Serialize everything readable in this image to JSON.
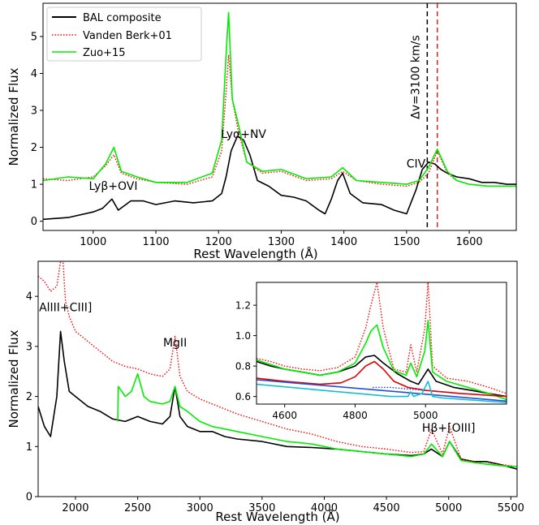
{
  "chart_data": [
    {
      "type": "line",
      "xlabel": "Rest Wavelength (Å)",
      "ylabel": "Normalized Flux",
      "xlim": [
        920,
        1675
      ],
      "ylim": [
        -0.25,
        5.9
      ],
      "xticks": [
        1000,
        1100,
        1200,
        1300,
        1400,
        1500,
        1600
      ],
      "yticks": [
        0,
        1,
        2,
        3,
        4,
        5
      ],
      "legend_position": "top-left",
      "series": [
        {
          "name": "BAL composite",
          "color": "#000000",
          "style": "solid",
          "x": [
            920,
            960,
            1000,
            1015,
            1030,
            1040,
            1060,
            1080,
            1100,
            1130,
            1160,
            1190,
            1205,
            1212,
            1220,
            1230,
            1240,
            1250,
            1262,
            1280,
            1300,
            1320,
            1340,
            1360,
            1370,
            1380,
            1390,
            1398,
            1410,
            1430,
            1460,
            1480,
            1500,
            1515,
            1525,
            1535,
            1545,
            1555,
            1565,
            1580,
            1600,
            1620,
            1640,
            1660,
            1675
          ],
          "y": [
            0.05,
            0.1,
            0.25,
            0.35,
            0.6,
            0.3,
            0.55,
            0.55,
            0.45,
            0.55,
            0.5,
            0.55,
            0.75,
            1.2,
            1.9,
            2.3,
            2.2,
            1.8,
            1.1,
            0.95,
            0.7,
            0.65,
            0.55,
            0.3,
            0.2,
            0.6,
            1.1,
            1.3,
            0.75,
            0.5,
            0.45,
            0.3,
            0.2,
            0.85,
            1.4,
            1.6,
            1.55,
            1.4,
            1.3,
            1.2,
            1.15,
            1.05,
            1.05,
            1.0,
            1.0
          ]
        },
        {
          "name": "Vanden Berk+01",
          "color": "#ff0000",
          "style": "dotted",
          "x": [
            920,
            960,
            1000,
            1020,
            1033,
            1045,
            1070,
            1100,
            1150,
            1190,
            1205,
            1212,
            1216,
            1222,
            1232,
            1245,
            1270,
            1300,
            1340,
            1380,
            1398,
            1420,
            1460,
            1500,
            1520,
            1535,
            1549,
            1565,
            1580,
            1600,
            1630,
            1660,
            1675
          ],
          "y": [
            1.15,
            1.1,
            1.2,
            1.5,
            1.8,
            1.3,
            1.15,
            1.05,
            1.0,
            1.2,
            1.9,
            3.5,
            4.5,
            3.3,
            2.4,
            1.6,
            1.3,
            1.35,
            1.1,
            1.15,
            1.35,
            1.1,
            1.0,
            0.95,
            1.05,
            1.3,
            1.9,
            1.3,
            1.1,
            1.0,
            0.95,
            0.95,
            0.95
          ]
        },
        {
          "name": "Zuo+15",
          "color": "#00ee00",
          "style": "solid",
          "x": [
            920,
            960,
            1000,
            1020,
            1033,
            1045,
            1070,
            1100,
            1150,
            1190,
            1205,
            1212,
            1216,
            1222,
            1232,
            1245,
            1270,
            1300,
            1340,
            1380,
            1398,
            1420,
            1460,
            1500,
            1520,
            1535,
            1549,
            1565,
            1580,
            1600,
            1630,
            1660,
            1675
          ],
          "y": [
            1.1,
            1.2,
            1.15,
            1.55,
            2.0,
            1.35,
            1.2,
            1.05,
            1.05,
            1.3,
            2.2,
            4.5,
            5.65,
            3.3,
            2.6,
            1.6,
            1.35,
            1.4,
            1.15,
            1.2,
            1.45,
            1.1,
            1.05,
            1.0,
            1.1,
            1.45,
            1.95,
            1.35,
            1.1,
            1.0,
            0.95,
            0.95,
            0.95
          ]
        }
      ],
      "vlines": [
        {
          "x": 1533,
          "color": "#000000",
          "style": "dashed"
        },
        {
          "x": 1549,
          "color": "#d62728",
          "style": "dashed"
        }
      ],
      "annotations": [
        {
          "text": "Lyβ+OVI",
          "x": 1032,
          "y": 0.85
        },
        {
          "text": "Lyα+NV",
          "x": 1240,
          "y": 2.25
        },
        {
          "text": "CIV",
          "x": 1515,
          "y": 1.45
        },
        {
          "text": "Δv=3100 km/s",
          "x": 1520,
          "y": 3.9,
          "rotation": -90
        }
      ]
    },
    {
      "type": "line",
      "xlabel": "Rest Wavelength (Å)",
      "ylabel": "Normalized Flux",
      "xlim": [
        1700,
        5550
      ],
      "ylim": [
        0,
        4.7
      ],
      "xticks": [
        2000,
        2500,
        3000,
        3500,
        4000,
        4500,
        5000,
        5500
      ],
      "yticks": [
        0,
        1,
        2,
        3,
        4
      ],
      "series": [
        {
          "name": "BAL composite",
          "color": "#000000",
          "style": "solid",
          "x": [
            1700,
            1750,
            1800,
            1850,
            1880,
            1910,
            1950,
            2000,
            2100,
            2200,
            2300,
            2400,
            2500,
            2600,
            2700,
            2760,
            2800,
            2840,
            2900,
            3000,
            3100,
            3200,
            3300,
            3500,
            3700,
            3900,
            4100,
            4300,
            4500,
            4700,
            4800,
            4860,
            4950,
            5007,
            5100,
            5200,
            5300,
            5400,
            5550
          ],
          "y": [
            1.8,
            1.4,
            1.2,
            2.0,
            3.3,
            2.7,
            2.1,
            2.0,
            1.8,
            1.7,
            1.55,
            1.5,
            1.6,
            1.5,
            1.45,
            1.6,
            2.2,
            1.6,
            1.4,
            1.3,
            1.3,
            1.2,
            1.15,
            1.1,
            1.0,
            0.98,
            0.95,
            0.9,
            0.85,
            0.82,
            0.85,
            0.95,
            0.8,
            1.1,
            0.75,
            0.7,
            0.7,
            0.65,
            0.55
          ]
        },
        {
          "name": "Vanden Berk+01",
          "color": "#ff0000",
          "style": "dotted",
          "x": [
            1700,
            1750,
            1800,
            1850,
            1880,
            1900,
            1920,
            1950,
            2000,
            2100,
            2200,
            2300,
            2400,
            2500,
            2600,
            2700,
            2760,
            2800,
            2840,
            2900,
            3000,
            3100,
            3200,
            3300,
            3500,
            3700,
            3900,
            4100,
            4300,
            4500,
            4700,
            4800,
            4862,
            4950,
            5007,
            5100,
            5200,
            5300,
            5400,
            5550
          ],
          "y": [
            4.4,
            4.3,
            4.1,
            4.2,
            4.7,
            4.7,
            3.9,
            3.6,
            3.3,
            3.1,
            2.9,
            2.7,
            2.6,
            2.55,
            2.45,
            2.4,
            2.55,
            3.2,
            2.4,
            2.1,
            1.95,
            1.85,
            1.75,
            1.65,
            1.5,
            1.35,
            1.25,
            1.1,
            1.0,
            0.95,
            0.88,
            0.9,
            1.35,
            0.85,
            1.4,
            0.75,
            0.7,
            0.65,
            0.65,
            0.6
          ]
        },
        {
          "name": "Zuo+15",
          "color": "#00ee00",
          "style": "solid",
          "x": [
            2340,
            2345,
            2400,
            2450,
            2500,
            2550,
            2600,
            2700,
            2760,
            2800,
            2840,
            2900,
            3000,
            3100,
            3200,
            3300,
            3500,
            3700,
            3900,
            4100,
            4300,
            4500,
            4700,
            4800,
            4862,
            4950,
            5007,
            5100,
            5200,
            5300,
            5400,
            5550
          ],
          "y": [
            1.5,
            2.2,
            2.0,
            2.1,
            2.45,
            2.0,
            1.9,
            1.85,
            1.9,
            2.2,
            1.8,
            1.7,
            1.5,
            1.4,
            1.35,
            1.3,
            1.2,
            1.1,
            1.05,
            0.95,
            0.9,
            0.85,
            0.8,
            0.85,
            1.05,
            0.8,
            1.1,
            0.72,
            0.68,
            0.65,
            0.62,
            0.6
          ]
        }
      ],
      "annotations": [
        {
          "text": "AlIII+CIII]",
          "x": 1920,
          "y": 3.7
        },
        {
          "text": "MgII",
          "x": 2800,
          "y": 3.0
        },
        {
          "text": "Hβ+[OIII]",
          "x": 5000,
          "y": 1.3
        }
      ]
    },
    {
      "type": "line",
      "role": "inset",
      "xlim": [
        4520,
        5230
      ],
      "ylim": [
        0.55,
        1.35
      ],
      "xticks": [
        4600,
        4800,
        5000
      ],
      "yticks": [
        0.6,
        0.8,
        1.0,
        1.2
      ],
      "series": [
        {
          "color": "#000000",
          "style": "solid",
          "x": [
            4520,
            4560,
            4600,
            4650,
            4700,
            4750,
            4800,
            4830,
            4855,
            4880,
            4920,
            4958,
            4980,
            5007,
            5030,
            5080,
            5130,
            5180,
            5230
          ],
          "y": [
            0.83,
            0.8,
            0.78,
            0.76,
            0.74,
            0.76,
            0.8,
            0.86,
            0.87,
            0.82,
            0.75,
            0.7,
            0.68,
            0.78,
            0.7,
            0.66,
            0.64,
            0.62,
            0.6
          ]
        },
        {
          "color": "#ff0000",
          "style": "dotted",
          "x": [
            4520,
            4560,
            4600,
            4650,
            4700,
            4750,
            4800,
            4830,
            4845,
            4862,
            4880,
            4910,
            4945,
            4958,
            4975,
            4998,
            5007,
            5020,
            5060,
            5120,
            5180,
            5230
          ],
          "y": [
            0.85,
            0.83,
            0.8,
            0.78,
            0.77,
            0.79,
            0.86,
            1.05,
            1.2,
            1.35,
            1.05,
            0.78,
            0.76,
            0.94,
            0.76,
            1.05,
            1.35,
            0.8,
            0.72,
            0.7,
            0.66,
            0.62
          ]
        },
        {
          "color": "#00ee00",
          "style": "solid",
          "x": [
            4520,
            4560,
            4600,
            4650,
            4700,
            4750,
            4800,
            4830,
            4845,
            4862,
            4880,
            4910,
            4945,
            4958,
            4975,
            4998,
            5007,
            5020,
            5060,
            5120,
            5180,
            5230
          ],
          "y": [
            0.84,
            0.81,
            0.78,
            0.76,
            0.74,
            0.76,
            0.82,
            0.95,
            1.03,
            1.07,
            0.92,
            0.77,
            0.74,
            0.82,
            0.73,
            0.9,
            1.1,
            0.76,
            0.7,
            0.66,
            0.62,
            0.58
          ]
        },
        {
          "color": "#e00000",
          "style": "solid",
          "x": [
            4520,
            4600,
            4700,
            4760,
            4800,
            4830,
            4855,
            4880,
            4910,
            4950,
            5000,
            5100,
            5230
          ],
          "y": [
            0.72,
            0.7,
            0.68,
            0.69,
            0.73,
            0.8,
            0.83,
            0.78,
            0.7,
            0.66,
            0.64,
            0.62,
            0.6
          ]
        },
        {
          "color": "#1f4fd6",
          "style": "solid",
          "x": [
            4520,
            5230
          ],
          "y": [
            0.71,
            0.57
          ]
        },
        {
          "color": "#17becf",
          "style": "solid",
          "x": [
            4520,
            4900,
            4950,
            4958,
            4966,
            4990,
            5007,
            5020,
            5050,
            5230
          ],
          "y": [
            0.68,
            0.6,
            0.6,
            0.63,
            0.6,
            0.62,
            0.7,
            0.6,
            0.59,
            0.56
          ]
        },
        {
          "color": "#1f3fbf",
          "style": "dotted",
          "x": [
            4850,
            4900,
            4950,
            5000
          ],
          "y": [
            0.66,
            0.66,
            0.65,
            0.64
          ]
        }
      ]
    }
  ]
}
